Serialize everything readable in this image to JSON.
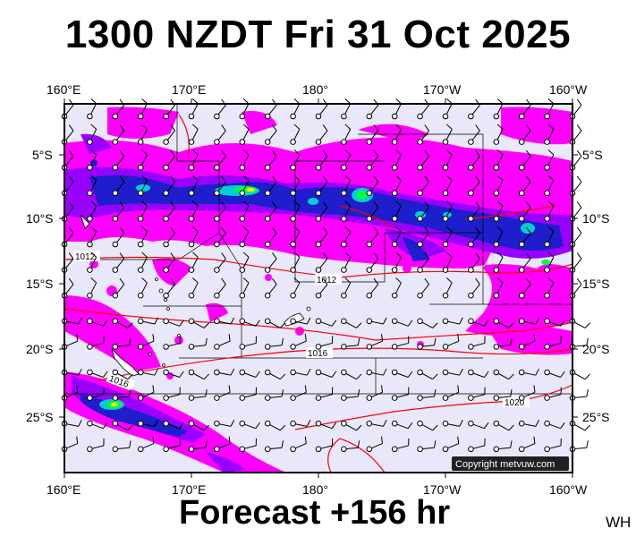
{
  "title": "1300 NZDT Fri 31 Oct 2025",
  "footer": "Forecast +156 hr",
  "corner_tag": "WH",
  "copyright": "Copyright metvuw.com",
  "lon_labels": [
    "160°E",
    "170°E",
    "180°",
    "170°W",
    "160°W"
  ],
  "lat_labels": [
    "5°S",
    "10°S",
    "15°S",
    "20°S",
    "25°S"
  ],
  "isobar_labels": [
    "1012",
    "1012",
    "1016",
    "1016",
    "1020"
  ],
  "colors": {
    "ocean": "#e8e8fa",
    "light_rain": "#ff00ff",
    "moderate_rain": "#9a00ff",
    "heavy_rain": "#1e1ecc",
    "very_heavy_rain": "#00d0d0",
    "intense_rain": "#00ff40",
    "extreme_rain": "#ffff00",
    "isobar": "#ff0000",
    "border": "#000000"
  }
}
